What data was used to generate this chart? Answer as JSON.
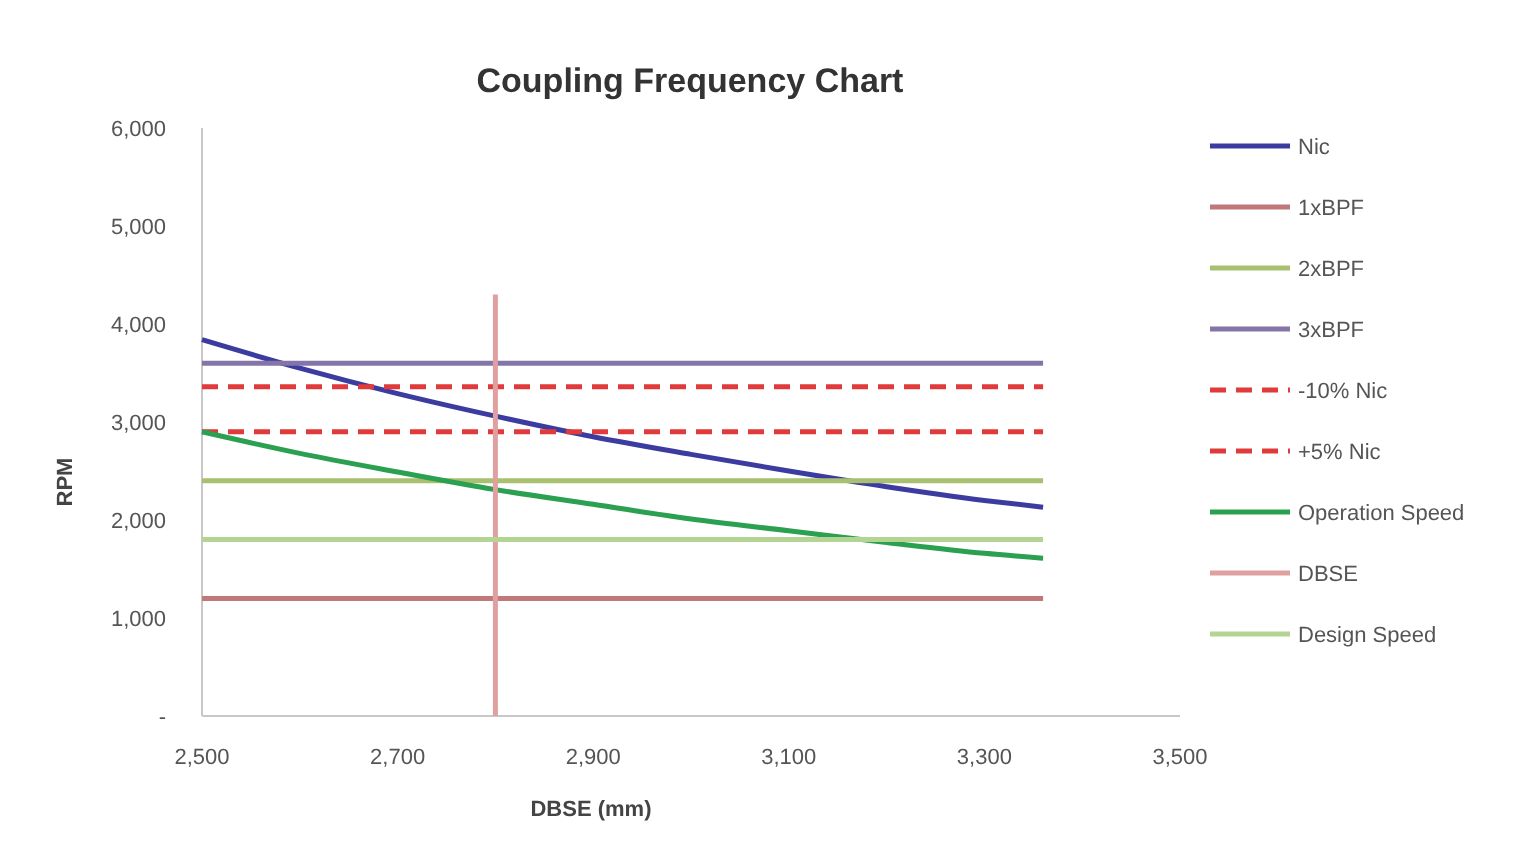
{
  "chart_data": {
    "type": "line",
    "title": "Coupling Frequency Chart",
    "xlabel": "DBSE (mm)",
    "ylabel": "RPM",
    "x": [
      2500,
      2600,
      2700,
      2800,
      2900,
      3000,
      3100,
      3200,
      3300,
      3360
    ],
    "series": [
      {
        "name": "Nic",
        "color": "#3c3ca0",
        "values": [
          3840,
          3550,
          3290,
          3060,
          2850,
          2670,
          2500,
          2340,
          2200,
          2130
        ]
      },
      {
        "name": "1xBPF",
        "color": "#c07878",
        "x": [
          2500,
          3360
        ],
        "values": [
          1200,
          1200
        ]
      },
      {
        "name": "2xBPF",
        "color": "#a8c070",
        "x": [
          2500,
          3360
        ],
        "values": [
          2400,
          2400
        ]
      },
      {
        "name": "3xBPF",
        "color": "#8474a8",
        "x": [
          2500,
          3360
        ],
        "values": [
          3600,
          3600
        ]
      },
      {
        "name": "-10% Nic",
        "color": "#e03a3a",
        "line_style": "dashed",
        "x": [
          2500,
          3360
        ],
        "values": [
          3360,
          3360
        ]
      },
      {
        "name": "+5% Nic",
        "color": "#e03a3a",
        "line_style": "dashed",
        "x": [
          2500,
          3360
        ],
        "values": [
          2900,
          2900
        ]
      },
      {
        "name": "Operation Speed",
        "color": "#2aa050",
        "values": [
          2900,
          2680,
          2490,
          2310,
          2160,
          2010,
          1890,
          1770,
          1660,
          1610
        ]
      },
      {
        "name": "DBSE",
        "color": "#e0a0a0",
        "x": [
          2800,
          2800
        ],
        "values": [
          0,
          4300
        ]
      },
      {
        "name": "Design Speed",
        "color": "#b4d494",
        "x": [
          2500,
          3360
        ],
        "values": [
          1800,
          1800
        ]
      }
    ],
    "xlim": [
      2500,
      3500
    ],
    "xticks": [
      {
        "value": 2500,
        "label": "2,500"
      },
      {
        "value": 2700,
        "label": "2,700"
      },
      {
        "value": 2900,
        "label": "2,900"
      },
      {
        "value": 3100,
        "label": "3,100"
      },
      {
        "value": 3300,
        "label": "3,300"
      },
      {
        "value": 3500,
        "label": "3,500"
      }
    ],
    "ylim": [
      0,
      6000
    ],
    "yticks": [
      {
        "value": 0,
        "label": "-"
      },
      {
        "value": 1000,
        "label": "1,000"
      },
      {
        "value": 2000,
        "label": "2,000"
      },
      {
        "value": 3000,
        "label": "3,000"
      },
      {
        "value": 4000,
        "label": "4,000"
      },
      {
        "value": 5000,
        "label": "5,000"
      },
      {
        "value": 6000,
        "label": "6,000"
      }
    ],
    "grid": false,
    "legend": "right",
    "marker": "none",
    "line_style": "solid"
  }
}
